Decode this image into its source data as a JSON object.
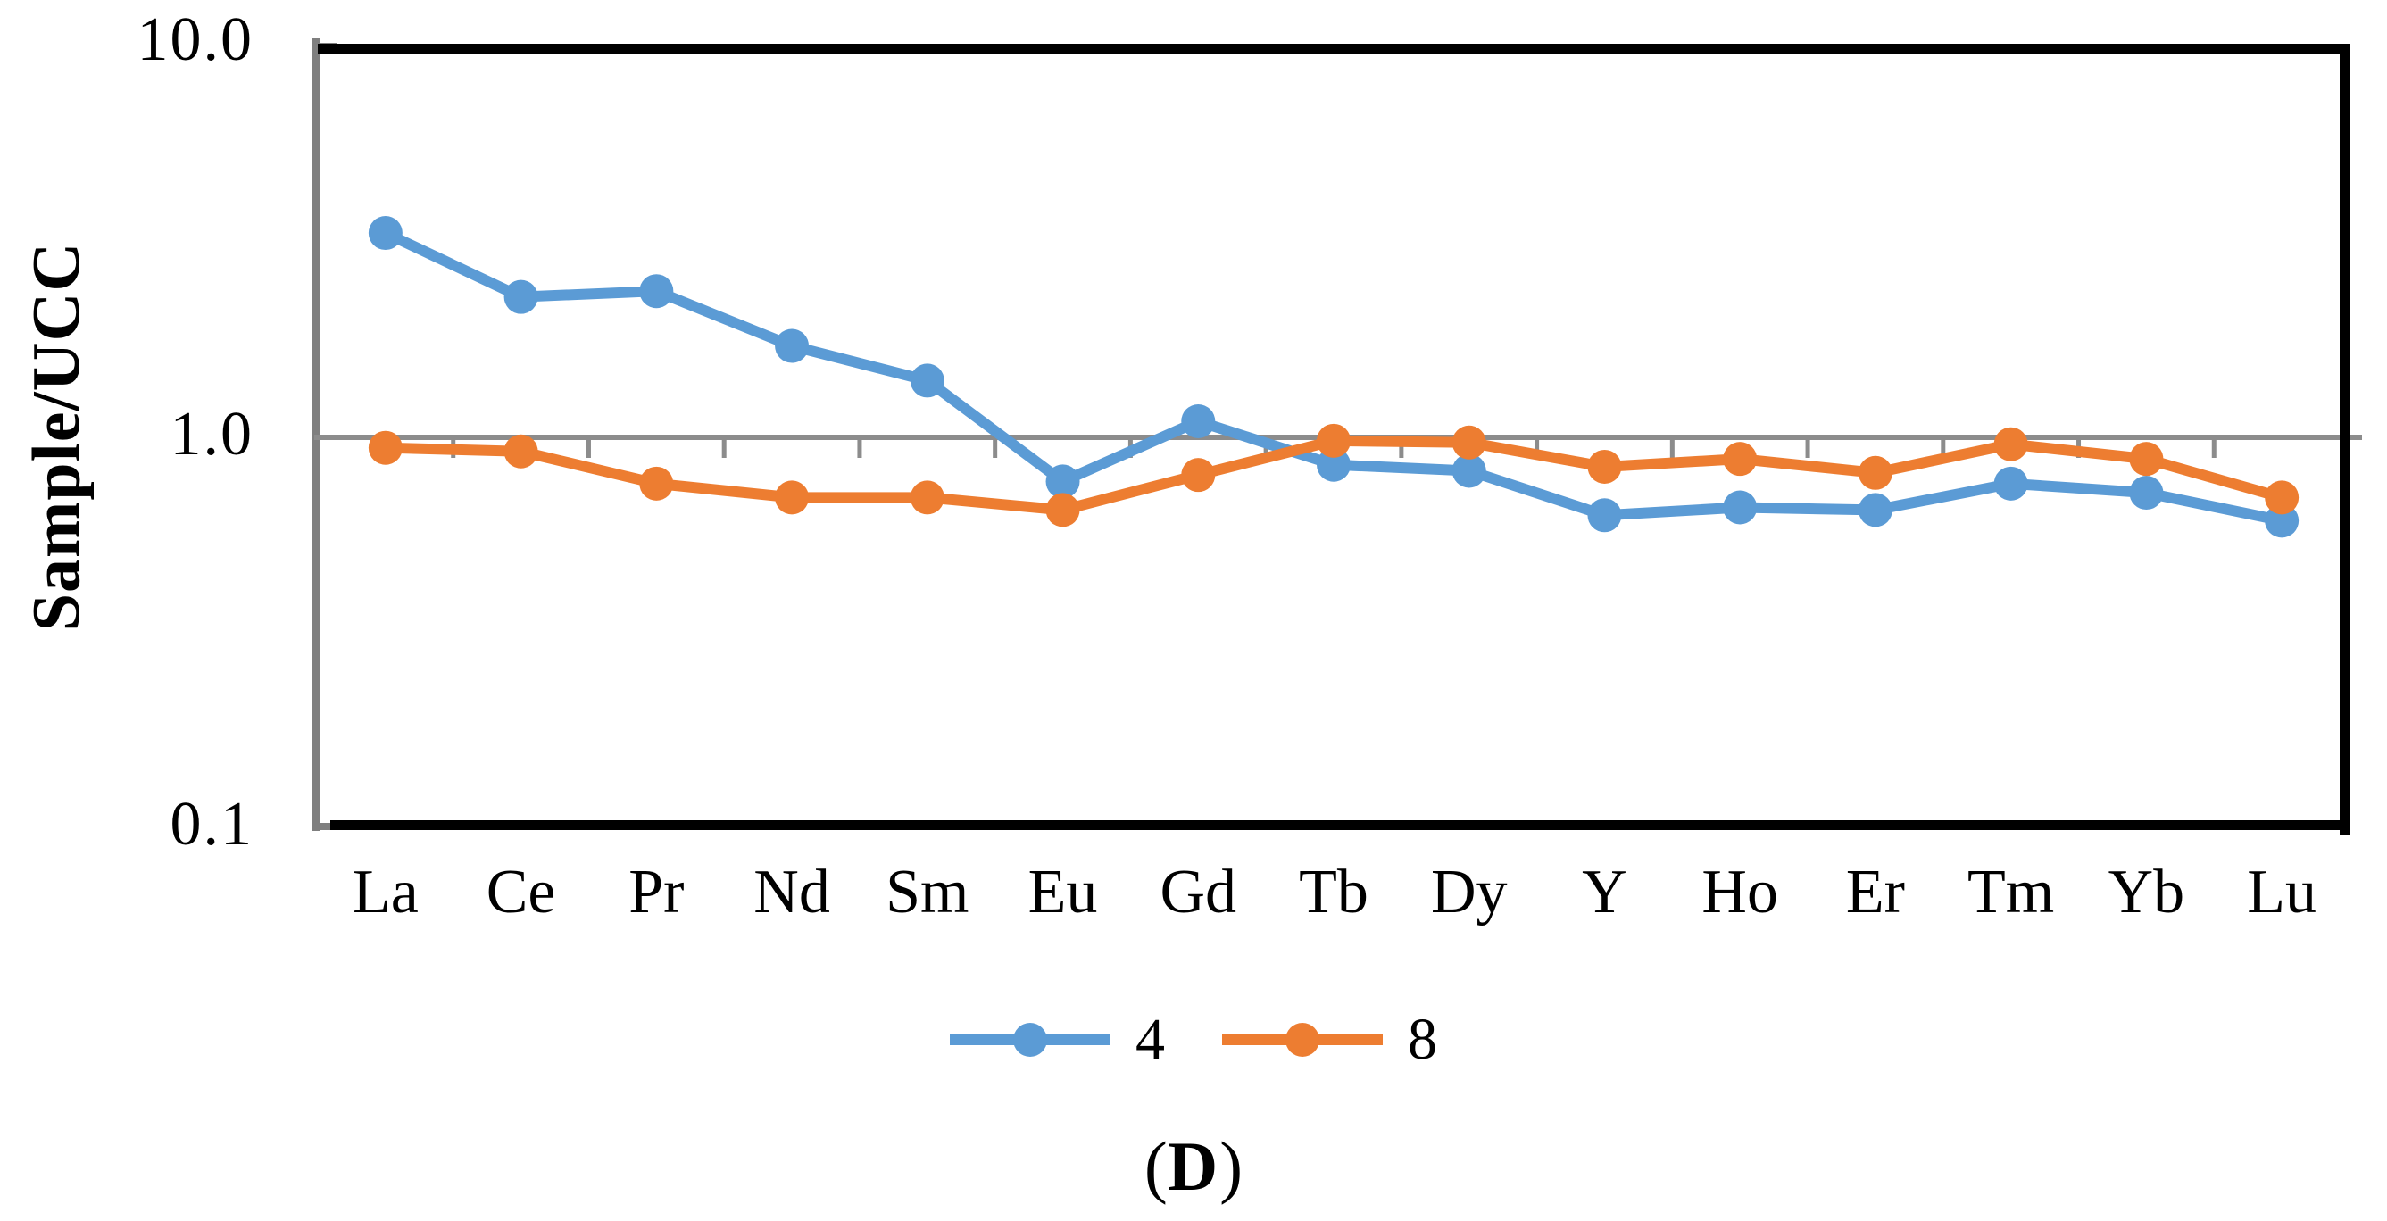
{
  "chart_data": {
    "type": "line",
    "yscale": "log",
    "ylim": [
      0.1,
      10
    ],
    "ylabel": "Sample/UCC",
    "xlabel": "",
    "grid": "single gridline at y=1.0 (category axis)",
    "legend_position": "bottom-center",
    "y_ticks": [
      {
        "label": "10.0",
        "value": 10
      },
      {
        "label": "1.0",
        "value": 1
      },
      {
        "label": "0.1",
        "value": 0.1
      }
    ],
    "categories": [
      "La",
      "Ce",
      "Pr",
      "Nd",
      "Sm",
      "Eu",
      "Gd",
      "Tb",
      "Dy",
      "Y",
      "Ho",
      "Er",
      "Tm",
      "Yb",
      "Lu"
    ],
    "series": [
      {
        "name": "4",
        "color": "#5B9BD5",
        "values": [
          3.36,
          2.3,
          2.38,
          1.72,
          1.4,
          0.77,
          1.1,
          0.85,
          0.82,
          0.63,
          0.66,
          0.65,
          0.76,
          0.72,
          0.61
        ]
      },
      {
        "name": "8",
        "color": "#ED7D31",
        "values": [
          0.94,
          0.92,
          0.76,
          0.7,
          0.7,
          0.65,
          0.8,
          0.98,
          0.97,
          0.84,
          0.88,
          0.81,
          0.96,
          0.88,
          0.7
        ]
      }
    ],
    "caption": {
      "open": "(",
      "letter": "D",
      "close": ")"
    },
    "colors": {
      "axis_gray": "#7F7F7F",
      "grid_gray": "#8C8C8C",
      "border_black": "#000000",
      "background": "#FFFFFF"
    }
  }
}
